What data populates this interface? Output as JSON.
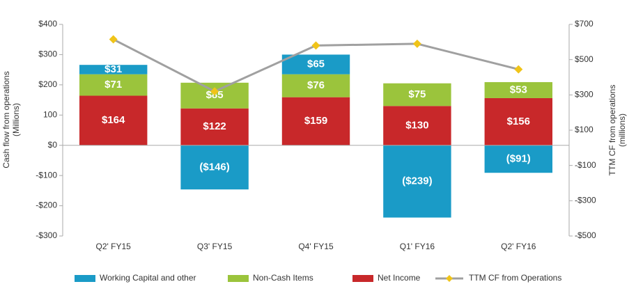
{
  "chart_data": {
    "type": "bar-line",
    "ylabel": [
      "Cash flow from operations",
      "(Millions)"
    ],
    "y2label": [
      "TTM CF from operations",
      "(millions)"
    ],
    "categories": [
      "Q2' FY15",
      "Q3' FY15",
      "Q4' FY15",
      "Q1' FY16",
      "Q2' FY16"
    ],
    "series": [
      {
        "name": "Working Capital and other",
        "color": "#1a9bc7",
        "type": "bar",
        "values": [
          31,
          -146,
          65,
          -239,
          -91
        ],
        "value_labels": [
          "$31",
          "($146)",
          "$65",
          "($239)",
          "($91)"
        ]
      },
      {
        "name": "Non-Cash Items",
        "color": "#9bc43c",
        "type": "bar",
        "values": [
          71,
          85,
          76,
          75,
          53
        ],
        "value_labels": [
          "$71",
          "$85",
          "$76",
          "$75",
          "$53"
        ]
      },
      {
        "name": "Net Income",
        "color": "#c8282a",
        "type": "bar",
        "values": [
          164,
          122,
          159,
          130,
          156
        ],
        "value_labels": [
          "$164",
          "$122",
          "$159",
          "$130",
          "$156"
        ]
      },
      {
        "name": "TTM CF from Operations",
        "color": "#a0a0a0",
        "marker_color": "#f0c419",
        "type": "line",
        "axis": "y2",
        "values": [
          615,
          320,
          580,
          590,
          445
        ]
      }
    ],
    "ylim": [
      -300,
      400
    ],
    "yticks": [
      {
        "value": 400,
        "label": "$400"
      },
      {
        "value": 300,
        "label": "$300"
      },
      {
        "value": 200,
        "label": "$200"
      },
      {
        "value": 100,
        "label": "100"
      },
      {
        "value": 0,
        "label": "$0"
      },
      {
        "value": -100,
        "label": "-$100"
      },
      {
        "value": -200,
        "label": "-$200"
      },
      {
        "value": -300,
        "label": "-$300"
      }
    ],
    "y2lim": [
      -500,
      700
    ],
    "y2ticks": [
      {
        "value": 700,
        "label": "$700"
      },
      {
        "value": 500,
        "label": "$500"
      },
      {
        "value": 300,
        "label": "$300"
      },
      {
        "value": 100,
        "label": "$100"
      },
      {
        "value": -100,
        "label": "-$100"
      },
      {
        "value": -300,
        "label": "-$300"
      },
      {
        "value": -500,
        "label": "-$500"
      }
    ],
    "legend": "bottom"
  }
}
